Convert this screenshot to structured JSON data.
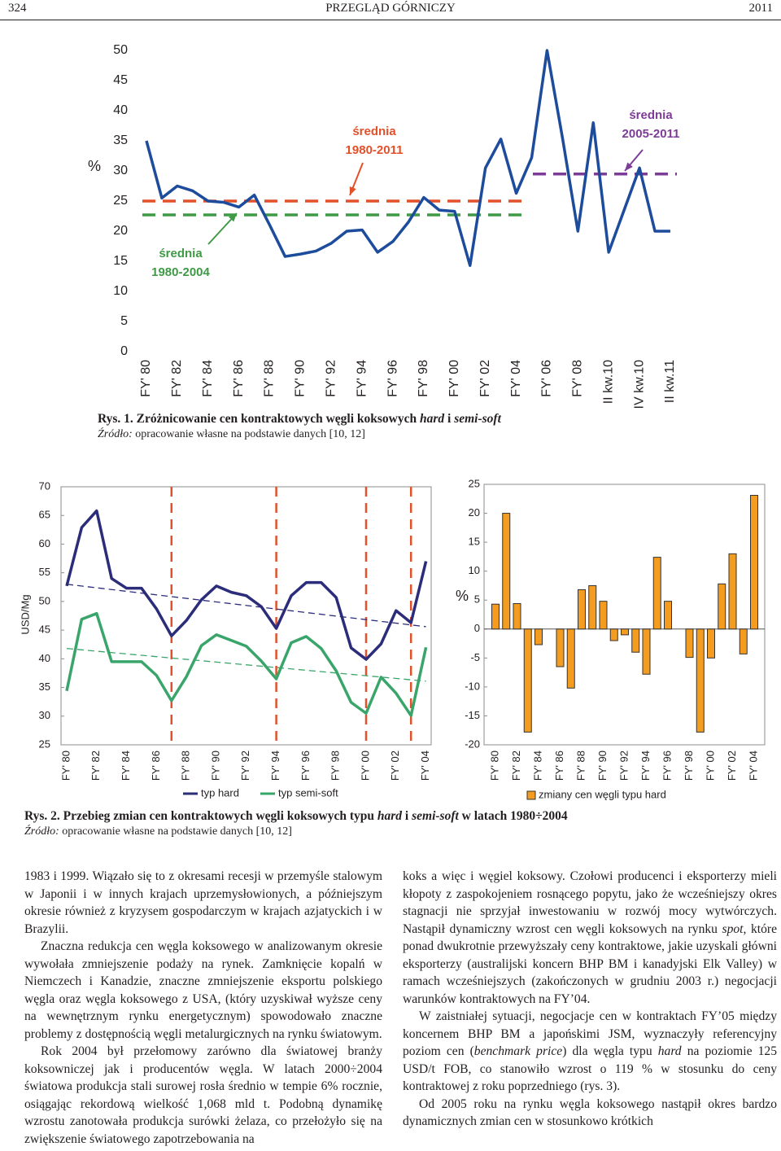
{
  "header": {
    "page": "324",
    "journal": "PRZEGLĄD GÓRNICZY",
    "year": "2011"
  },
  "chart_data": [
    {
      "type": "line",
      "y_label": "%",
      "categories": [
        "FY' 80",
        null,
        "FY' 82",
        null,
        "FY' 84",
        null,
        "FY' 86",
        null,
        "FY' 88",
        null,
        "FY' 90",
        null,
        "FY' 92",
        null,
        "FY' 94",
        null,
        "FY' 96",
        null,
        "FY' 98",
        null,
        "FY' 00",
        null,
        "FY' 02",
        null,
        "FY' 04",
        null,
        "FY' 06",
        null,
        "FY' 08",
        null,
        "II kw.10",
        null,
        "IV kw.10",
        null,
        "II kw.11"
      ],
      "series": [
        {
          "color": "#1d4c9c",
          "values": [
            35,
            25.5,
            27.5,
            26.7,
            25,
            24.8,
            24,
            26,
            21,
            15.8,
            16.2,
            16.7,
            18,
            20,
            20.2,
            16.5,
            18.3,
            21.5,
            25.6,
            23.5,
            23.3,
            14.3,
            30.5,
            35.3,
            26.3,
            32.2,
            50,
            35.5,
            20,
            38,
            16.5,
            23.5,
            30.5,
            20,
            20
          ]
        }
      ],
      "reference_lines": [
        {
          "value": 25,
          "color": "#e2512a",
          "label": [
            "średnia",
            "1980-2011"
          ]
        },
        {
          "value": 22.7,
          "color": "#3f9a46",
          "label": [
            "średnia",
            "1980-2004"
          ]
        },
        {
          "value": 29.5,
          "color": "#7d3c98",
          "label": [
            "średnia",
            "2005-2011"
          ]
        }
      ],
      "ylim": [
        0,
        50
      ],
      "yticks": [
        0,
        5,
        10,
        15,
        20,
        25,
        30,
        35,
        40,
        45,
        50
      ]
    },
    {
      "type": "line",
      "y_label": "USD/Mg",
      "categories": [
        "FY' 80",
        null,
        "FY' 82",
        null,
        "FY' 84",
        null,
        "FY' 86",
        null,
        "FY' 88",
        null,
        "FY' 90",
        null,
        "FY' 92",
        null,
        "FY' 94",
        null,
        "FY' 96",
        null,
        "FY' 98",
        null,
        "FY' 00",
        null,
        "FY' 02",
        null,
        "FY' 04"
      ],
      "series": [
        {
          "name": "typ hard",
          "color": "#2b2d7a",
          "values": [
            52.7,
            62.9,
            65.8,
            54,
            52.3,
            52.3,
            48.7,
            44,
            46.7,
            50.3,
            52.7,
            51.6,
            51,
            49.1,
            45.3,
            51,
            53.3,
            53.3,
            50.7,
            41.9,
            39.9,
            42.6,
            48.4,
            46.3,
            57
          ],
          "trend": [
            53,
            45.6
          ]
        },
        {
          "name": "typ semi-soft",
          "color": "#3aa56a",
          "values": [
            34.4,
            46.9,
            47.9,
            39.5,
            39.5,
            39.5,
            37.1,
            32.7,
            36.9,
            42.3,
            44.2,
            43.2,
            42.2,
            39.6,
            36.5,
            42.8,
            43.9,
            41.8,
            37.9,
            32.4,
            30.5,
            36.8,
            34,
            30.1,
            42
          ],
          "trend": [
            41.8,
            36.1
          ]
        }
      ],
      "ylim": [
        25,
        70
      ],
      "yticks": [
        25,
        30,
        35,
        40,
        45,
        50,
        55,
        60,
        65,
        70
      ]
    },
    {
      "type": "bar",
      "y_label": "%",
      "categories": [
        "FY' 80",
        null,
        "FY' 82",
        null,
        "FY' 84",
        null,
        "FY' 86",
        null,
        "FY' 88",
        null,
        "FY' 90",
        null,
        "FY' 92",
        null,
        "FY' 94",
        null,
        "FY' 96",
        null,
        "FY' 98",
        null,
        "FY' 00",
        null,
        "FY' 02",
        null,
        "FY' 04"
      ],
      "series": [
        {
          "name": "zmiany cen węgli typu hard",
          "color": "#f39c1f",
          "values": [
            4.3,
            20,
            4.4,
            -17.8,
            -2.7,
            0,
            -6.5,
            -10.2,
            6.8,
            7.5,
            4.8,
            -2,
            -1,
            -4,
            -7.8,
            12.4,
            4.8,
            0,
            -4.9,
            -17.8,
            -5,
            7.8,
            13,
            -4.3,
            23.1
          ]
        }
      ],
      "ylim": [
        -20,
        25
      ],
      "yticks": [
        -20,
        -15,
        -10,
        -5,
        0,
        5,
        10,
        15,
        20,
        25
      ]
    }
  ],
  "captions": [
    {
      "title": [
        {
          "text": "Rys. 1. Zróżnicowanie cen kontraktowych węgli koksowych "
        },
        {
          "text": "hard",
          "italic": true
        },
        {
          "text": " i "
        },
        {
          "text": "semi-soft",
          "italic": true
        }
      ],
      "source": [
        {
          "text": "Źródło:",
          "italic": true
        },
        {
          "text": " opracowanie własne na podstawie danych [10, 12]"
        }
      ]
    },
    {
      "title": [
        {
          "text": "Rys. 2. Przebieg zmian cen kontraktowych węgli koksowych typu "
        },
        {
          "text": "hard",
          "italic": true
        },
        {
          "text": " i "
        },
        {
          "text": "semi-soft",
          "italic": true
        },
        {
          "text": " w latach 1980÷2004"
        }
      ],
      "source": [
        {
          "text": "Źródło:",
          "italic": true
        },
        {
          "text": " opracowanie własne na podstawie danych [10, 12]"
        }
      ]
    }
  ],
  "columns": [
    [
      [
        {
          "text": "1983 i 1999. Wiązało się to z okresami recesji w przemyśle stalowym w Japonii i w innych krajach uprzemysłowionych, a późniejszym okresie również z kryzysem gospodarczym w krajach azjatyckich i w Brazylii."
        }
      ],
      [
        {
          "text": "Znaczna redukcja cen węgla koksowego w analizowanym okresie wywołała zmniejszenie podaży na rynek. Zamknięcie kopalń w Niemczech i Kanadzie, znaczne zmniejszenie eksportu polskiego węgla oraz węgla koksowego z USA, (który uzyskiwał wyższe ceny na wewnętrznym rynku energetycznym) spowodowało znaczne problemy z dostępnością węgli metalurgicznych na rynku światowym."
        }
      ],
      [
        {
          "text": "Rok 2004 był przełomowy zarówno dla światowej branży koksowniczej jak i producentów węgla. W latach 2000÷2004 światowa produkcja stali surowej rosła średnio w tempie 6% rocznie, osiągając rekordową wielkość 1,068 mld t. Podobną dynamikę wzrostu zanotowała produkcja surówki żelaza, co przełożyło się na zwiększenie światowego zapotrzebowania na"
        }
      ]
    ],
    [
      [
        {
          "text": "koks a więc i węgiel koksowy. Czołowi producenci i eksporterzy mieli kłopoty z zaspokojeniem rosnącego popytu, jako że wcześniejszy okres stagnacji nie sprzyjał inwestowaniu w rozwój mocy wytwórczych. Nastąpił dynamiczny wzrost cen węgli koksowych na rynku "
        },
        {
          "text": "spot",
          "italic": true
        },
        {
          "text": ", które ponad dwukrotnie przewyższały ceny kontraktowe, jakie uzyskali główni eksporterzy (australijski koncern BHP BM i kanadyjski Elk Valley) w ramach wcześniejszych (zakończonych w grudniu 2003 r.) negocjacji warunków kontraktowych na FY’04."
        }
      ],
      [
        {
          "text": "W zaistniałej sytuacji, negocjacje cen w kontraktach FY’05 między koncernem BHP BM a japońskimi JSM, wyznaczyły referencyjny poziom cen ("
        },
        {
          "text": "benchmark price",
          "italic": true
        },
        {
          "text": ") dla węgla typu "
        },
        {
          "text": "hard",
          "italic": true
        },
        {
          "text": " na poziomie 125 USD/t FOB, co stanowiło wzrost o 119 % w stosunku do ceny kontraktowej z roku poprzedniego (rys. 3)."
        }
      ],
      [
        {
          "text": "Od 2005 roku na rynku węgla koksowego nastąpił okres bardzo dynamicznych zmian cen w stosunkowo krótkich"
        }
      ]
    ]
  ]
}
